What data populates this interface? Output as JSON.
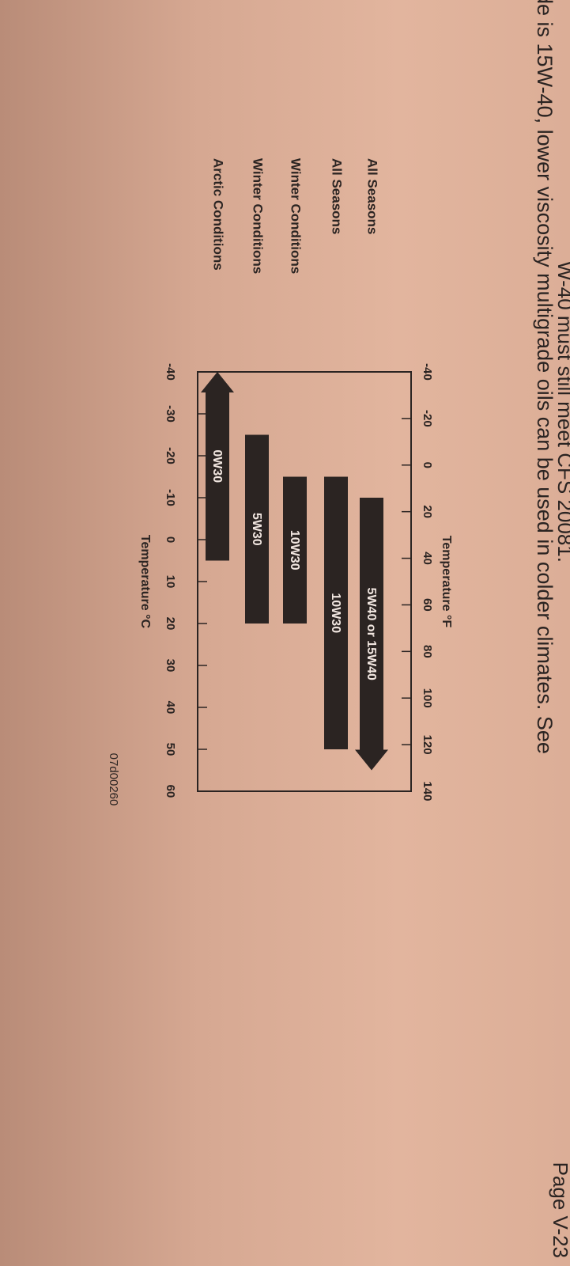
{
  "page_label": "Page V-23",
  "body_lines": [
    "W-40 must still meet CFS 20081.",
    "de is 15W-40, lower viscosity multigrade oils can be used in colder climates. See"
  ],
  "chart_data": {
    "type": "range-bar",
    "x2label": "Temperature °F",
    "xlabel": "Temperature °C",
    "figure_id": "07d00260",
    "xlim": [
      -40,
      60
    ],
    "xticks": [
      -40,
      -30,
      -20,
      -10,
      0,
      10,
      20,
      30,
      40,
      50,
      60
    ],
    "x2lim": [
      -40,
      140
    ],
    "x2ticks": [
      -40,
      -20,
      0,
      20,
      40,
      60,
      80,
      100,
      120,
      140
    ],
    "color": "#2b2422",
    "series": [
      {
        "category": "All Seasons",
        "name": "5W40 or 15W40",
        "start": -10,
        "end": 55,
        "arrow": "right"
      },
      {
        "category": "All Seasons",
        "name": "10W30",
        "start": -15,
        "end": 50
      },
      {
        "category": "Winter Conditions",
        "name": "10W30",
        "start": -15,
        "end": 20
      },
      {
        "category": "Winter Conditions",
        "name": "5W30",
        "start": -25,
        "end": 20
      },
      {
        "category": "Arctic Conditions",
        "name": "0W30",
        "start": -40,
        "end": 5,
        "arrow": "left"
      }
    ]
  }
}
